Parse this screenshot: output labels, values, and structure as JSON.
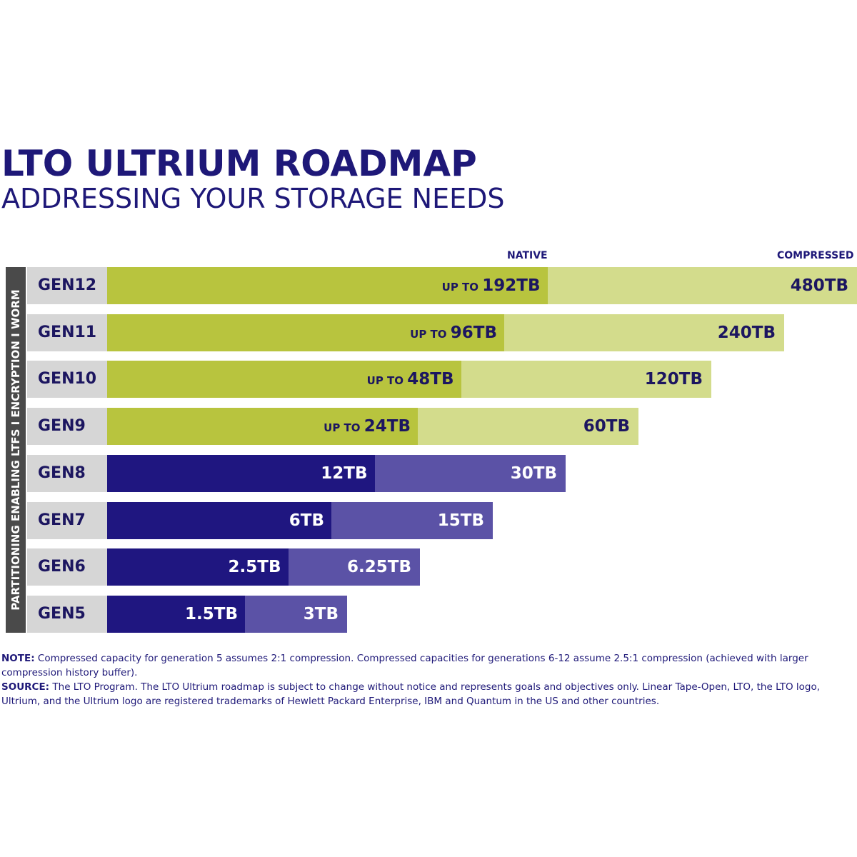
{
  "chart_data": {
    "type": "bar",
    "orientation": "horizontal",
    "stacked_overlay": true,
    "title": "LTO ULTRIUM ROADMAP",
    "subtitle": "ADDRESSING YOUR STORAGE NEEDS",
    "legend": {
      "native": "NATIVE",
      "compressed": "COMPRESSED"
    },
    "side_label": "PARTITIONING ENABLING LTFS  I  ENCRYPTION  I  WORM",
    "categories": [
      "GEN12",
      "GEN11",
      "GEN10",
      "GEN9",
      "GEN8",
      "GEN7",
      "GEN6",
      "GEN5"
    ],
    "series": [
      {
        "name": "NATIVE",
        "values": [
          192,
          96,
          48,
          24,
          12,
          6,
          2.5,
          1.5
        ],
        "unit": "TB",
        "labels": [
          "192TB",
          "96TB",
          "48TB",
          "24TB",
          "12TB",
          "6TB",
          "2.5TB",
          "1.5TB"
        ],
        "prefix": [
          "UP TO",
          "UP TO",
          "UP TO",
          "UP TO",
          "",
          "",
          "",
          ""
        ]
      },
      {
        "name": "COMPRESSED",
        "values": [
          480,
          240,
          120,
          60,
          30,
          15,
          6.25,
          3
        ],
        "unit": "TB",
        "labels": [
          "480TB",
          "240TB",
          "120TB",
          "60TB",
          "30TB",
          "15TB",
          "6.25TB",
          "3TB"
        ]
      }
    ],
    "colors": {
      "future_native": "#b8c43e",
      "future_compressed": "#d3dc8c",
      "current_native": "#1f1680",
      "current_compressed": "#5b52a6",
      "label_cell": "#d6d6d6",
      "text": "#1c1660"
    }
  },
  "notes": {
    "note_label": "NOTE:",
    "note_text": " Compressed capacity for generation 5 assumes 2:1 compression. Compressed capacities for generations 6-12 assume 2.5:1 compression (achieved with larger compression history buffer).",
    "source_label": "SOURCE:",
    "source_text": " The LTO Program. The LTO Ultrium roadmap is subject to change without notice and represents goals and objectives only. Linear Tape-Open, LTO, the LTO logo, Ultrium, and the Ultrium logo are registered trademarks of Hewlett Packard Enterprise, IBM and Quantum in the US and other countries."
  }
}
